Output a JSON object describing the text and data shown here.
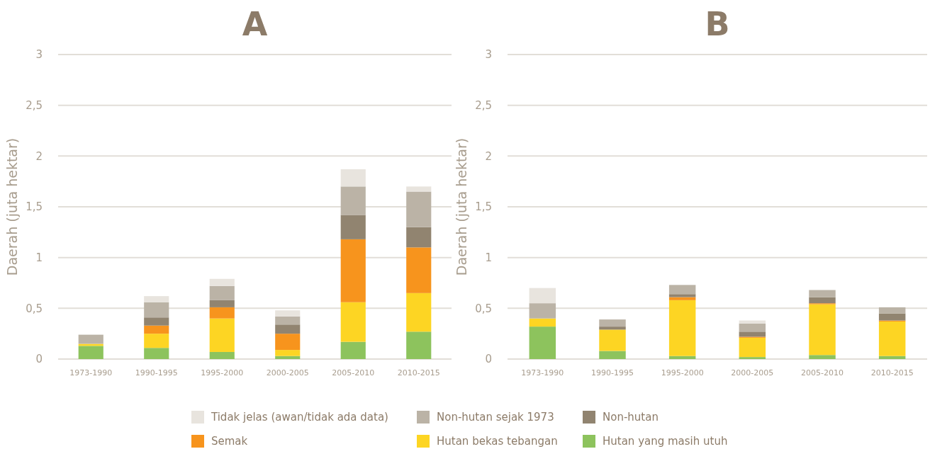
{
  "chart_data": [
    {
      "type": "bar",
      "title": "A",
      "ylabel": "Daerah (juta hektar)",
      "stacked": true,
      "grid": "y",
      "legend": false,
      "categories": [
        "1973-1990",
        "1990-1995",
        "1995-2000",
        "2000-2005",
        "2005-2010",
        "2010-2015"
      ],
      "ylim": [
        0,
        3
      ],
      "yticks": [
        0,
        {
          "value": 0.5,
          "label": "0,5"
        },
        1,
        {
          "value": 1.5,
          "label": "1,5"
        },
        2,
        {
          "value": 2.5,
          "label": "2,5"
        },
        3
      ],
      "series": [
        {
          "color": "#8dc35d",
          "values": [
            0.13,
            0.11,
            0.07,
            0.03,
            0.17,
            0.27
          ]
        },
        {
          "color": "#fdd523",
          "values": [
            0.02,
            0.14,
            0.33,
            0.06,
            0.39,
            0.38
          ]
        },
        {
          "color": "#f7941d",
          "values": [
            0,
            0.08,
            0.11,
            0.16,
            0.62,
            0.45
          ]
        },
        {
          "color": "#918470",
          "values": [
            0,
            0.08,
            0.07,
            0.09,
            0.24,
            0.2
          ]
        },
        {
          "color": "#bbb3a6",
          "values": [
            0.09,
            0.15,
            0.14,
            0.08,
            0.28,
            0.35
          ]
        },
        {
          "color": "#e8e4de",
          "values": [
            0,
            0.06,
            0.07,
            0.06,
            0.17,
            0.05
          ]
        }
      ]
    },
    {
      "type": "bar",
      "title": "B",
      "ylabel": "Daerah (juta hektar)",
      "stacked": true,
      "grid": "y",
      "legend": "bottom",
      "categories": [
        "1973-1990",
        "1990-1995",
        "1995-2000",
        "2000-2005",
        "2005-2010",
        "2010-2015"
      ],
      "ylim": [
        0,
        3
      ],
      "yticks": [
        0,
        {
          "value": 0.5,
          "label": "0,5"
        },
        1,
        {
          "value": 1.5,
          "label": "1,5"
        },
        2,
        {
          "value": 2.5,
          "label": "2,5"
        },
        3
      ],
      "series": [
        {
          "name": "Hutan yang masih utuh",
          "color": "#8dc35d",
          "values": [
            0.32,
            0.08,
            0.03,
            0.02,
            0.04,
            0.03
          ]
        },
        {
          "name": "Hutan bekas tebangan",
          "color": "#fdd523",
          "values": [
            0.08,
            0.21,
            0.55,
            0.19,
            0.5,
            0.34
          ]
        },
        {
          "name": "Semak",
          "color": "#f7941d",
          "values": [
            0,
            0,
            0.03,
            0.01,
            0.01,
            0.01
          ]
        },
        {
          "name": "Non-hutan",
          "color": "#918470",
          "values": [
            0,
            0.03,
            0.03,
            0.05,
            0.06,
            0.07
          ]
        },
        {
          "name": "Non-hutan sejak 1973",
          "color": "#bbb3a6",
          "values": [
            0.15,
            0.07,
            0.09,
            0.08,
            0.07,
            0.06
          ]
        },
        {
          "name": "Tidak jelas (awan/tidak ada data)",
          "color": "#e8e4de",
          "values": [
            0.15,
            null,
            0,
            0.03,
            0,
            0
          ]
        }
      ]
    }
  ]
}
